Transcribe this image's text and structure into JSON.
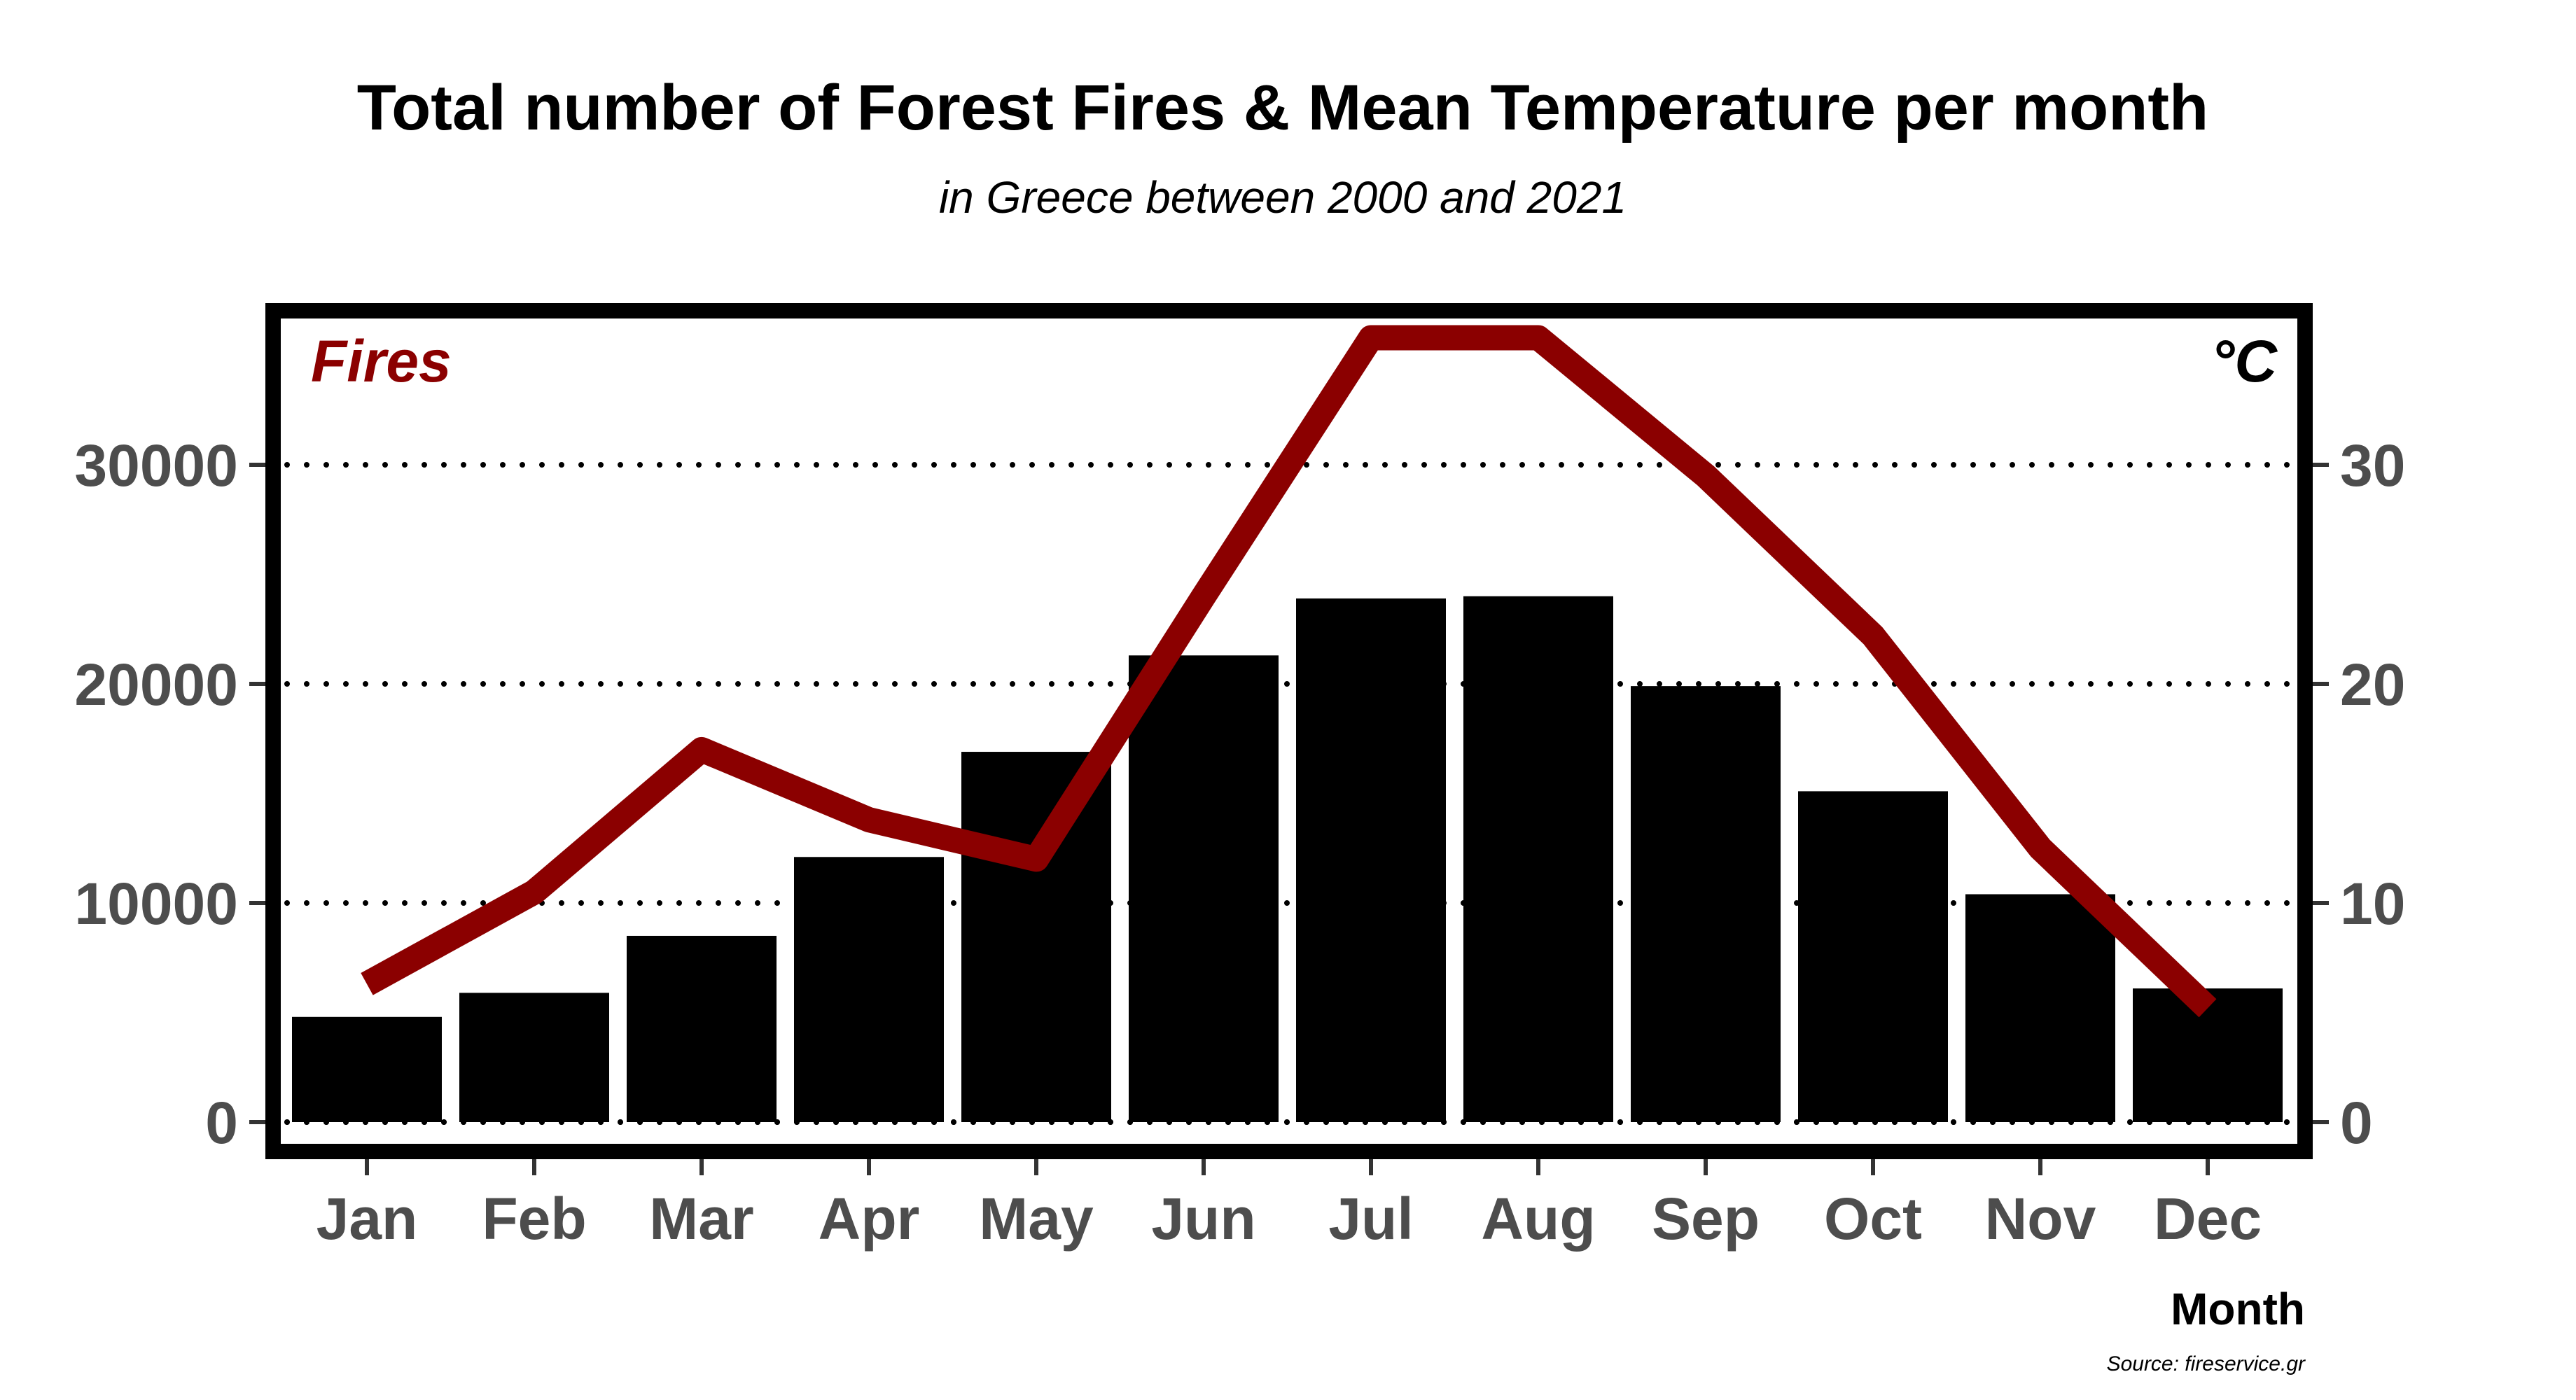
{
  "chart_data": {
    "type": "bar",
    "title": "Total number of Forest Fires & Mean Temperature per month",
    "subtitle": "in Greece between 2000 and 2021",
    "xlabel": "Month",
    "ylabel_left": "Fires",
    "ylabel_right": "°C",
    "caption": "Source: fireservice.gr",
    "categories": [
      "Jan",
      "Feb",
      "Mar",
      "Apr",
      "May",
      "Jun",
      "Jul",
      "Aug",
      "Sep",
      "Oct",
      "Nov",
      "Dec"
    ],
    "series": [
      {
        "type": "bar",
        "axis": "left",
        "color": "#000000",
        "values": [
          4800,
          5900,
          8500,
          12100,
          16900,
          21300,
          23900,
          24000,
          19900,
          15100,
          10400,
          6100
        ]
      },
      {
        "type": "line",
        "axis": "right",
        "color": "#8b0000",
        "values": [
          6.3,
          10.5,
          17.0,
          13.8,
          12.0,
          24.0,
          35.8,
          35.8,
          29.5,
          22.2,
          12.5,
          5.2
        ]
      }
    ],
    "ylim_left": [
      0,
      36500
    ],
    "yticks_left": [
      "0",
      "10000",
      "20000",
      "30000"
    ],
    "ylim_right": [
      0,
      36.5
    ],
    "yticks_right": [
      "0",
      "10",
      "20",
      "30"
    ],
    "grid": "horizontal dotted",
    "colors": {
      "bars": "#000000",
      "line": "#8b0000",
      "fires_label": "#8b0000"
    }
  }
}
